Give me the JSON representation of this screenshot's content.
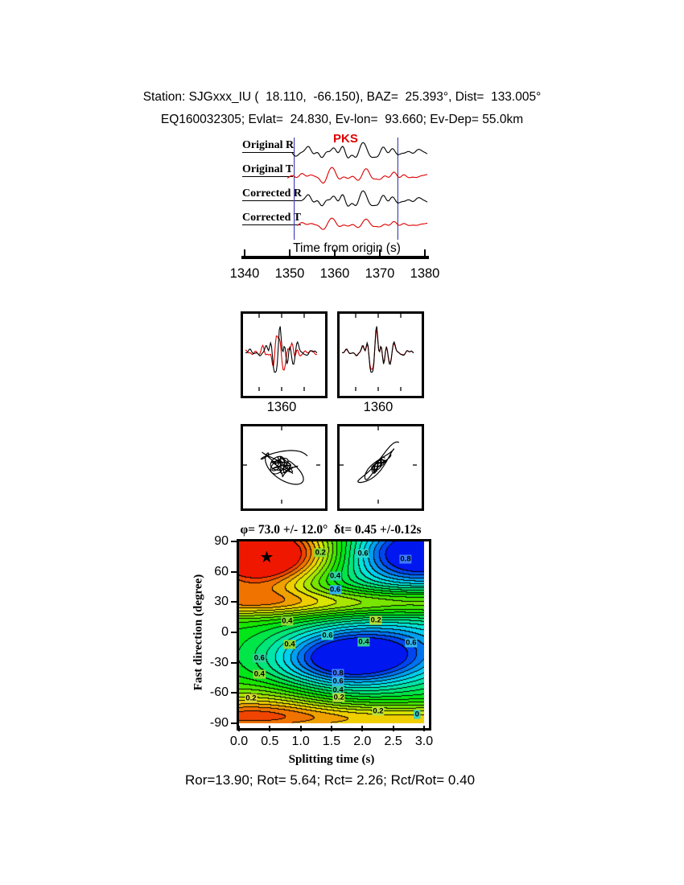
{
  "header": {
    "line1": "Station: SJGxxx_IU (  18.110,  -66.150), BAZ=  25.393°, Dist=  133.005°",
    "line2": "EQ160032305; Evlat=  24.830, Ev-lon=  93.660; Ev-Dep= 55.0km"
  },
  "waveforms": {
    "trace_labels": [
      "Original R",
      "Original T",
      "Corrected R",
      "Corrected T"
    ],
    "trace_colors": [
      "#000000",
      "#dd0000",
      "#000000",
      "#dd0000"
    ],
    "phase_label": "PKS",
    "phase_color": "#dd0000",
    "axis_label": "Time from origin (s)",
    "tick_labels": [
      "1340",
      "1350",
      "1360",
      "1370",
      "1380"
    ],
    "tick_values": [
      1340,
      1350,
      1360,
      1370,
      1380
    ],
    "window_lines_s": [
      1351.0,
      1374.0
    ],
    "window_color": "#4444bb"
  },
  "closeups": {
    "tick_label": "1360"
  },
  "contour": {
    "title": "φ= 73.0 +/- 12.0°  δt= 0.45 +/-0.12s",
    "xlabel": "Splitting time (s)",
    "ylabel": "Fast direction (degree)",
    "xtick_labels": [
      "0.0",
      "0.5",
      "1.0",
      "1.5",
      "2.0",
      "2.5",
      "3.0"
    ],
    "ytick_labels": [
      "90",
      "60",
      "30",
      "0",
      "-30",
      "-60",
      "-90"
    ],
    "xlim": [
      0,
      3
    ],
    "ylim": [
      -90,
      90
    ],
    "star": {
      "dt": 0.45,
      "phi": 73,
      "glyph": "★"
    },
    "labels": [
      {
        "text": "0.2",
        "fx": 0.44,
        "fy": 0.06,
        "bg": "#86d937"
      },
      {
        "text": "0.6",
        "fx": 0.67,
        "fy": 0.066,
        "bg": "#2fd4cf"
      },
      {
        "text": "0.8",
        "fx": 0.9,
        "fy": 0.097,
        "bg": "#3f7bff"
      },
      {
        "text": "0.4",
        "fx": 0.52,
        "fy": 0.19,
        "bg": "#2fd4a0"
      },
      {
        "text": "0.6",
        "fx": 0.52,
        "fy": 0.265,
        "bg": "#35b4ee"
      },
      {
        "text": "0.4",
        "fx": 0.26,
        "fy": 0.438,
        "bg": "#8ed937"
      },
      {
        "text": "0.2",
        "fx": 0.74,
        "fy": 0.434,
        "bg": "#b8e03c"
      },
      {
        "text": "0.6",
        "fx": 0.478,
        "fy": 0.518,
        "bg": "#2fd4cf"
      },
      {
        "text": "0.4",
        "fx": 0.674,
        "fy": 0.553,
        "bg": "#35cf9a"
      },
      {
        "text": "0.6",
        "fx": 0.93,
        "fy": 0.557,
        "bg": "#35b4ee"
      },
      {
        "text": "0.4",
        "fx": 0.274,
        "fy": 0.566,
        "bg": "#8ed937"
      },
      {
        "text": "0.6",
        "fx": 0.11,
        "fy": 0.64,
        "bg": "#35cf9a"
      },
      {
        "text": "0.4",
        "fx": 0.11,
        "fy": 0.73,
        "bg": "#8ed937"
      },
      {
        "text": "0.8",
        "fx": 0.535,
        "fy": 0.724,
        "bg": "#3f7bff"
      },
      {
        "text": "0.6",
        "fx": 0.535,
        "fy": 0.772,
        "bg": "#35b4ee"
      },
      {
        "text": "0.4",
        "fx": 0.535,
        "fy": 0.818,
        "bg": "#35cf9a"
      },
      {
        "text": "0.2",
        "fx": 0.065,
        "fy": 0.862,
        "bg": "#d9d937"
      },
      {
        "text": "0.2",
        "fx": 0.54,
        "fy": 0.858,
        "bg": "#b8e03c"
      },
      {
        "text": "0.2",
        "fx": 0.752,
        "fy": 0.934,
        "bg": "#b8e03c"
      },
      {
        "text": "0",
        "fx": 0.962,
        "fy": 0.95,
        "bg": "#2fd4cf"
      }
    ]
  },
  "results_line": "Ror=13.90; Rot= 5.64; Rct= 2.26; Rct/Rot= 0.40",
  "chart_data": [
    {
      "type": "line",
      "panel": "waveforms",
      "title": "Original and corrected radial/transverse seismograms",
      "series": [
        {
          "name": "Original R",
          "color": "#000000"
        },
        {
          "name": "Original T",
          "color": "#dd0000"
        },
        {
          "name": "Corrected R",
          "color": "#000000"
        },
        {
          "name": "Corrected T",
          "color": "#dd0000"
        }
      ],
      "xlabel": "Time from origin (s)",
      "xlim": [
        1338,
        1382
      ],
      "xticks": [
        1340,
        1350,
        1360,
        1370,
        1380
      ],
      "annotations": {
        "phase_arrival_label": "PKS",
        "analysis_window_s": [
          1351.0,
          1374.0
        ]
      }
    },
    {
      "type": "line",
      "panel": "waveform-closeups",
      "boxes": [
        "R/T overlay uncorrected",
        "R/T overlay corrected"
      ],
      "xticks": [
        1360
      ]
    },
    {
      "type": "scatter",
      "panel": "particle-motion",
      "boxes": [
        "uncorrected",
        "corrected"
      ]
    },
    {
      "type": "heatmap",
      "panel": "splitting-parameter-error-surface",
      "title": "φ= 73.0 +/- 12.0°  δt= 0.45 +/-0.12s",
      "xlabel": "Splitting time (s)",
      "ylabel": "Fast direction (degree)",
      "xlim": [
        0,
        3
      ],
      "ylim": [
        -90,
        90
      ],
      "xticks": [
        0.0,
        0.5,
        1.0,
        1.5,
        2.0,
        2.5,
        3.0
      ],
      "yticks": [
        90,
        60,
        30,
        0,
        -30,
        -60,
        -90
      ],
      "best_fit": {
        "phi_deg": 73.0,
        "phi_err_deg": 12.0,
        "dt_s": 0.45,
        "dt_err_s": 0.12
      },
      "star_marker": {
        "dt_s": 0.45,
        "phi_deg": 73
      },
      "contour_label_values": [
        0,
        0.2,
        0.4,
        0.6,
        0.8
      ]
    },
    {
      "type": "table",
      "panel": "quality-measures",
      "values": {
        "Ror": 13.9,
        "Rot": 5.64,
        "Rct": 2.26,
        "Rct/Rot": 0.4
      }
    }
  ]
}
